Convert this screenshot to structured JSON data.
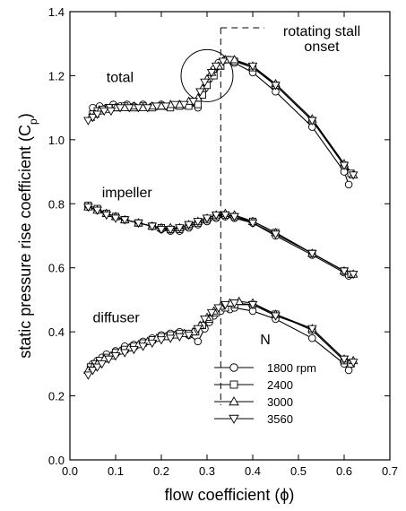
{
  "chart_data": {
    "type": "line",
    "xlabel": "flow coefficient  (ϕ)",
    "ylabel": "static pressure rise coefficient (C",
    "ylabel_sub": "p",
    "ylabel_tail": ")",
    "xlim": [
      0.0,
      0.7
    ],
    "ylim": [
      0.0,
      1.4
    ],
    "xticks": [
      0.0,
      0.1,
      0.2,
      0.3,
      0.4,
      0.5,
      0.6,
      0.7
    ],
    "xtick_labels": [
      "0.0",
      "0.1",
      "0.2",
      "0.3",
      "0.4",
      "0.5",
      "0.6",
      "0.7"
    ],
    "yticks": [
      0.0,
      0.2,
      0.4,
      0.6,
      0.8,
      1.0,
      1.2,
      1.4
    ],
    "ytick_labels": [
      "0.0",
      "0.2",
      "0.4",
      "0.6",
      "0.8",
      "1.0",
      "1.2",
      "1.4"
    ],
    "grid": false,
    "legend_title": "N",
    "legend_position": "lower-middle",
    "annotations": [
      {
        "text": "rotating stall",
        "x": 0.33
      },
      {
        "text": "onset"
      }
    ],
    "stall_line_x": 0.33,
    "circle_center": [
      0.3,
      1.2
    ],
    "group_labels": [
      {
        "text": "total",
        "x": 0.08,
        "y": 1.18
      },
      {
        "text": "impeller",
        "x": 0.07,
        "y": 0.82
      },
      {
        "text": "diffuser",
        "x": 0.05,
        "y": 0.43
      }
    ],
    "series": [
      {
        "name": "1800 rpm",
        "marker": "circle",
        "total": [
          [
            0.05,
            1.1
          ],
          [
            0.065,
            1.105
          ],
          [
            0.08,
            1.1
          ],
          [
            0.095,
            1.11
          ],
          [
            0.11,
            1.105
          ],
          [
            0.125,
            1.11
          ],
          [
            0.14,
            1.105
          ],
          [
            0.16,
            1.11
          ],
          [
            0.18,
            1.105
          ],
          [
            0.2,
            1.11
          ],
          [
            0.22,
            1.105
          ],
          [
            0.24,
            1.11
          ],
          [
            0.26,
            1.11
          ],
          [
            0.28,
            1.1
          ],
          [
            0.295,
            1.16
          ],
          [
            0.305,
            1.19
          ],
          [
            0.315,
            1.22
          ],
          [
            0.325,
            1.24
          ],
          [
            0.34,
            1.25
          ],
          [
            0.36,
            1.24
          ],
          [
            0.4,
            1.21
          ],
          [
            0.45,
            1.15
          ],
          [
            0.53,
            1.04
          ],
          [
            0.6,
            0.9
          ],
          [
            0.61,
            0.86
          ]
        ],
        "impeller": [
          [
            0.04,
            0.79
          ],
          [
            0.06,
            0.78
          ],
          [
            0.08,
            0.77
          ],
          [
            0.1,
            0.76
          ],
          [
            0.12,
            0.75
          ],
          [
            0.15,
            0.74
          ],
          [
            0.18,
            0.73
          ],
          [
            0.2,
            0.72
          ],
          [
            0.22,
            0.715
          ],
          [
            0.24,
            0.715
          ],
          [
            0.26,
            0.725
          ],
          [
            0.28,
            0.735
          ],
          [
            0.3,
            0.745
          ],
          [
            0.32,
            0.755
          ],
          [
            0.34,
            0.76
          ],
          [
            0.36,
            0.755
          ],
          [
            0.4,
            0.74
          ],
          [
            0.45,
            0.7
          ],
          [
            0.53,
            0.64
          ],
          [
            0.6,
            0.585
          ],
          [
            0.61,
            0.575
          ]
        ],
        "diffuser": [
          [
            0.05,
            0.3
          ],
          [
            0.06,
            0.31
          ],
          [
            0.07,
            0.32
          ],
          [
            0.08,
            0.33
          ],
          [
            0.1,
            0.34
          ],
          [
            0.12,
            0.355
          ],
          [
            0.14,
            0.36
          ],
          [
            0.16,
            0.37
          ],
          [
            0.18,
            0.38
          ],
          [
            0.2,
            0.39
          ],
          [
            0.22,
            0.395
          ],
          [
            0.24,
            0.4
          ],
          [
            0.26,
            0.39
          ],
          [
            0.28,
            0.37
          ],
          [
            0.295,
            0.41
          ],
          [
            0.305,
            0.43
          ],
          [
            0.315,
            0.45
          ],
          [
            0.33,
            0.465
          ],
          [
            0.35,
            0.47
          ],
          [
            0.36,
            0.475
          ],
          [
            0.4,
            0.465
          ],
          [
            0.45,
            0.44
          ],
          [
            0.53,
            0.38
          ],
          [
            0.6,
            0.3
          ],
          [
            0.61,
            0.28
          ]
        ]
      },
      {
        "name": "2400",
        "marker": "square",
        "total": [
          [
            0.05,
            1.08
          ],
          [
            0.06,
            1.09
          ],
          [
            0.07,
            1.095
          ],
          [
            0.085,
            1.1
          ],
          [
            0.1,
            1.1
          ],
          [
            0.12,
            1.105
          ],
          [
            0.14,
            1.1
          ],
          [
            0.16,
            1.105
          ],
          [
            0.18,
            1.1
          ],
          [
            0.2,
            1.105
          ],
          [
            0.22,
            1.1
          ],
          [
            0.24,
            1.105
          ],
          [
            0.26,
            1.105
          ],
          [
            0.28,
            1.11
          ],
          [
            0.29,
            1.14
          ],
          [
            0.3,
            1.17
          ],
          [
            0.315,
            1.2
          ],
          [
            0.33,
            1.23
          ],
          [
            0.345,
            1.25
          ],
          [
            0.36,
            1.245
          ],
          [
            0.4,
            1.225
          ],
          [
            0.45,
            1.17
          ],
          [
            0.53,
            1.06
          ],
          [
            0.6,
            0.92
          ],
          [
            0.615,
            0.895
          ]
        ],
        "impeller": [
          [
            0.04,
            0.795
          ],
          [
            0.06,
            0.785
          ],
          [
            0.08,
            0.77
          ],
          [
            0.1,
            0.76
          ],
          [
            0.12,
            0.75
          ],
          [
            0.15,
            0.74
          ],
          [
            0.18,
            0.73
          ],
          [
            0.2,
            0.725
          ],
          [
            0.22,
            0.72
          ],
          [
            0.24,
            0.72
          ],
          [
            0.26,
            0.73
          ],
          [
            0.28,
            0.74
          ],
          [
            0.3,
            0.75
          ],
          [
            0.32,
            0.76
          ],
          [
            0.34,
            0.765
          ],
          [
            0.36,
            0.76
          ],
          [
            0.4,
            0.745
          ],
          [
            0.45,
            0.71
          ],
          [
            0.53,
            0.645
          ],
          [
            0.6,
            0.59
          ],
          [
            0.615,
            0.58
          ]
        ],
        "diffuser": [
          [
            0.045,
            0.29
          ],
          [
            0.055,
            0.3
          ],
          [
            0.065,
            0.31
          ],
          [
            0.08,
            0.32
          ],
          [
            0.1,
            0.335
          ],
          [
            0.12,
            0.345
          ],
          [
            0.14,
            0.355
          ],
          [
            0.16,
            0.365
          ],
          [
            0.18,
            0.375
          ],
          [
            0.2,
            0.385
          ],
          [
            0.22,
            0.39
          ],
          [
            0.24,
            0.395
          ],
          [
            0.26,
            0.395
          ],
          [
            0.275,
            0.4
          ],
          [
            0.29,
            0.42
          ],
          [
            0.305,
            0.44
          ],
          [
            0.32,
            0.46
          ],
          [
            0.34,
            0.475
          ],
          [
            0.36,
            0.485
          ],
          [
            0.4,
            0.485
          ],
          [
            0.45,
            0.455
          ],
          [
            0.53,
            0.405
          ],
          [
            0.6,
            0.31
          ],
          [
            0.615,
            0.3
          ]
        ]
      },
      {
        "name": "3000",
        "marker": "triangle-up",
        "total": [
          [
            0.045,
            1.07
          ],
          [
            0.055,
            1.08
          ],
          [
            0.065,
            1.09
          ],
          [
            0.08,
            1.095
          ],
          [
            0.1,
            1.1
          ],
          [
            0.12,
            1.1
          ],
          [
            0.14,
            1.105
          ],
          [
            0.16,
            1.1
          ],
          [
            0.18,
            1.105
          ],
          [
            0.2,
            1.105
          ],
          [
            0.22,
            1.11
          ],
          [
            0.24,
            1.11
          ],
          [
            0.26,
            1.12
          ],
          [
            0.28,
            1.13
          ],
          [
            0.29,
            1.16
          ],
          [
            0.3,
            1.19
          ],
          [
            0.31,
            1.21
          ],
          [
            0.325,
            1.23
          ],
          [
            0.34,
            1.25
          ],
          [
            0.36,
            1.25
          ],
          [
            0.4,
            1.23
          ],
          [
            0.45,
            1.175
          ],
          [
            0.53,
            1.065
          ],
          [
            0.6,
            0.925
          ],
          [
            0.62,
            0.89
          ]
        ],
        "impeller": [
          [
            0.04,
            0.79
          ],
          [
            0.06,
            0.78
          ],
          [
            0.08,
            0.77
          ],
          [
            0.1,
            0.76
          ],
          [
            0.12,
            0.75
          ],
          [
            0.15,
            0.74
          ],
          [
            0.18,
            0.73
          ],
          [
            0.2,
            0.725
          ],
          [
            0.22,
            0.725
          ],
          [
            0.24,
            0.725
          ],
          [
            0.26,
            0.735
          ],
          [
            0.28,
            0.745
          ],
          [
            0.3,
            0.755
          ],
          [
            0.32,
            0.765
          ],
          [
            0.34,
            0.77
          ],
          [
            0.36,
            0.765
          ],
          [
            0.4,
            0.745
          ],
          [
            0.45,
            0.71
          ],
          [
            0.53,
            0.645
          ],
          [
            0.6,
            0.59
          ],
          [
            0.62,
            0.58
          ]
        ],
        "diffuser": [
          [
            0.04,
            0.28
          ],
          [
            0.05,
            0.29
          ],
          [
            0.06,
            0.3
          ],
          [
            0.075,
            0.315
          ],
          [
            0.09,
            0.325
          ],
          [
            0.11,
            0.34
          ],
          [
            0.13,
            0.35
          ],
          [
            0.15,
            0.36
          ],
          [
            0.17,
            0.37
          ],
          [
            0.19,
            0.38
          ],
          [
            0.21,
            0.385
          ],
          [
            0.23,
            0.39
          ],
          [
            0.25,
            0.395
          ],
          [
            0.27,
            0.4
          ],
          [
            0.285,
            0.42
          ],
          [
            0.3,
            0.445
          ],
          [
            0.315,
            0.465
          ],
          [
            0.33,
            0.48
          ],
          [
            0.35,
            0.49
          ],
          [
            0.37,
            0.495
          ],
          [
            0.4,
            0.49
          ],
          [
            0.45,
            0.455
          ],
          [
            0.53,
            0.41
          ],
          [
            0.6,
            0.315
          ],
          [
            0.62,
            0.31
          ]
        ]
      },
      {
        "name": "3560",
        "marker": "triangle-down",
        "total": [
          [
            0.04,
            1.06
          ],
          [
            0.05,
            1.07
          ],
          [
            0.06,
            1.08
          ],
          [
            0.075,
            1.09
          ],
          [
            0.09,
            1.09
          ],
          [
            0.11,
            1.1
          ],
          [
            0.13,
            1.1
          ],
          [
            0.15,
            1.1
          ],
          [
            0.17,
            1.1
          ],
          [
            0.19,
            1.105
          ],
          [
            0.21,
            1.105
          ],
          [
            0.23,
            1.11
          ],
          [
            0.25,
            1.11
          ],
          [
            0.27,
            1.12
          ],
          [
            0.285,
            1.15
          ],
          [
            0.295,
            1.18
          ],
          [
            0.31,
            1.21
          ],
          [
            0.32,
            1.23
          ],
          [
            0.335,
            1.245
          ],
          [
            0.35,
            1.25
          ],
          [
            0.4,
            1.23
          ],
          [
            0.45,
            1.17
          ],
          [
            0.53,
            1.06
          ],
          [
            0.6,
            0.92
          ],
          [
            0.62,
            0.89
          ]
        ],
        "impeller": [
          [
            0.04,
            0.79
          ],
          [
            0.06,
            0.78
          ],
          [
            0.08,
            0.765
          ],
          [
            0.1,
            0.755
          ],
          [
            0.12,
            0.75
          ],
          [
            0.15,
            0.74
          ],
          [
            0.18,
            0.73
          ],
          [
            0.2,
            0.72
          ],
          [
            0.22,
            0.72
          ],
          [
            0.24,
            0.725
          ],
          [
            0.26,
            0.735
          ],
          [
            0.28,
            0.745
          ],
          [
            0.3,
            0.755
          ],
          [
            0.32,
            0.765
          ],
          [
            0.34,
            0.765
          ],
          [
            0.36,
            0.76
          ],
          [
            0.4,
            0.74
          ],
          [
            0.45,
            0.705
          ],
          [
            0.53,
            0.645
          ],
          [
            0.6,
            0.59
          ],
          [
            0.62,
            0.58
          ]
        ],
        "diffuser": [
          [
            0.04,
            0.265
          ],
          [
            0.05,
            0.28
          ],
          [
            0.06,
            0.29
          ],
          [
            0.07,
            0.3
          ],
          [
            0.085,
            0.315
          ],
          [
            0.1,
            0.325
          ],
          [
            0.12,
            0.335
          ],
          [
            0.14,
            0.345
          ],
          [
            0.16,
            0.355
          ],
          [
            0.18,
            0.365
          ],
          [
            0.2,
            0.375
          ],
          [
            0.22,
            0.38
          ],
          [
            0.24,
            0.385
          ],
          [
            0.26,
            0.39
          ],
          [
            0.28,
            0.41
          ],
          [
            0.295,
            0.44
          ],
          [
            0.31,
            0.46
          ],
          [
            0.325,
            0.475
          ],
          [
            0.34,
            0.485
          ],
          [
            0.36,
            0.49
          ],
          [
            0.4,
            0.485
          ],
          [
            0.45,
            0.45
          ],
          [
            0.53,
            0.41
          ],
          [
            0.6,
            0.315
          ],
          [
            0.62,
            0.305
          ]
        ]
      }
    ]
  }
}
